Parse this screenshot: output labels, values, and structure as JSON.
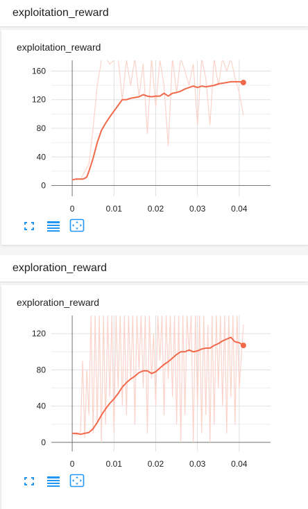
{
  "sections": [
    {
      "header": "exploitation_reward",
      "card_title": "exploitation_reward",
      "icons": [
        "fullscreen-icon",
        "data-table-icon",
        "fit-domain-icon"
      ]
    },
    {
      "header": "exploration_reward",
      "card_title": "exploration_reward",
      "icons": [
        "fullscreen-icon",
        "data-table-icon",
        "fit-domain-icon"
      ]
    }
  ],
  "colors": {
    "smoothed": "#f2684a",
    "raw": "#fbd3ca",
    "grid": "#e0e0e0",
    "axis": "#757575",
    "icon": "#2196f3"
  },
  "chart_data": [
    {
      "type": "line",
      "title": "exploitation_reward",
      "xlabel": "",
      "ylabel": "",
      "xlim": [
        -0.005,
        0.0475
      ],
      "ylim": [
        -15,
        175
      ],
      "x_ticks": [
        "0",
        "0.01",
        "0.02",
        "0.03",
        "0.04"
      ],
      "y_ticks": [
        "0",
        "40",
        "80",
        "120",
        "160"
      ],
      "grid": true,
      "series": [
        {
          "role": "smoothed",
          "x": [
            0,
            0.001,
            0.002,
            0.0025,
            0.003,
            0.0035,
            0.004,
            0.005,
            0.006,
            0.007,
            0.008,
            0.009,
            0.01,
            0.011,
            0.012,
            0.013,
            0.014,
            0.015,
            0.016,
            0.017,
            0.018,
            0.019,
            0.02,
            0.021,
            0.022,
            0.023,
            0.024,
            0.025,
            0.026,
            0.027,
            0.028,
            0.029,
            0.03,
            0.031,
            0.032,
            0.033,
            0.034,
            0.035,
            0.036,
            0.037,
            0.038,
            0.039,
            0.04,
            0.041
          ],
          "y": [
            8,
            9,
            9,
            9,
            10,
            12,
            20,
            38,
            60,
            77,
            87,
            96,
            104,
            112,
            120,
            120,
            122,
            123,
            124,
            127,
            125,
            124,
            125,
            125,
            129,
            125,
            129,
            130,
            132,
            135,
            137,
            139,
            137,
            139,
            138,
            139,
            140,
            142,
            143,
            144,
            145,
            145,
            145,
            144
          ]
        },
        {
          "role": "raw",
          "x": [
            0,
            0.002,
            0.004,
            0.005,
            0.006,
            0.007,
            0.008,
            0.009,
            0.01,
            0.011,
            0.012,
            0.013,
            0.014,
            0.015,
            0.016,
            0.017,
            0.018,
            0.019,
            0.02,
            0.021,
            0.022,
            0.023,
            0.024,
            0.025,
            0.026,
            0.027,
            0.028,
            0.029,
            0.03,
            0.031,
            0.032,
            0.033,
            0.034,
            0.035,
            0.036,
            0.037,
            0.038,
            0.039,
            0.04,
            0.041
          ],
          "y": [
            8,
            9,
            30,
            80,
            140,
            175,
            178,
            170,
            175,
            178,
            120,
            175,
            140,
            178,
            125,
            170,
            72,
            178,
            110,
            175,
            140,
            55,
            178,
            130,
            178,
            160,
            140,
            170,
            85,
            178,
            150,
            85,
            178,
            140,
            178,
            160,
            178,
            150,
            130,
            98
          ]
        }
      ]
    },
    {
      "type": "line",
      "title": "exploration_reward",
      "xlabel": "",
      "ylabel": "",
      "xlim": [
        -0.005,
        0.0475
      ],
      "ylim": [
        -10,
        140
      ],
      "x_ticks": [
        "0",
        "0.01",
        "0.02",
        "0.03",
        "0.04"
      ],
      "y_ticks": [
        "0",
        "40",
        "80",
        "120"
      ],
      "grid": true,
      "series": [
        {
          "role": "smoothed",
          "x": [
            0,
            0.001,
            0.002,
            0.003,
            0.004,
            0.005,
            0.006,
            0.007,
            0.008,
            0.009,
            0.01,
            0.011,
            0.012,
            0.013,
            0.014,
            0.015,
            0.016,
            0.017,
            0.018,
            0.019,
            0.02,
            0.021,
            0.022,
            0.023,
            0.024,
            0.025,
            0.026,
            0.027,
            0.028,
            0.029,
            0.03,
            0.031,
            0.032,
            0.033,
            0.034,
            0.035,
            0.036,
            0.037,
            0.038,
            0.039,
            0.04,
            0.041
          ],
          "y": [
            10,
            10,
            9,
            10,
            11,
            15,
            22,
            30,
            37,
            43,
            48,
            54,
            61,
            66,
            70,
            73,
            77,
            79,
            79,
            76,
            78,
            82,
            86,
            89,
            93,
            97,
            100,
            100,
            102,
            100,
            101,
            103,
            104,
            104,
            107,
            109,
            112,
            114,
            116,
            111,
            110,
            107
          ]
        },
        {
          "role": "raw",
          "x": [
            0,
            0.001,
            0.002,
            0.0025,
            0.003,
            0.0035,
            0.004,
            0.0045,
            0.005,
            0.0055,
            0.006,
            0.0065,
            0.007,
            0.0075,
            0.008,
            0.0085,
            0.009,
            0.0095,
            0.01,
            0.0105,
            0.011,
            0.0115,
            0.012,
            0.0125,
            0.013,
            0.0135,
            0.014,
            0.0145,
            0.015,
            0.0155,
            0.016,
            0.0165,
            0.017,
            0.0175,
            0.018,
            0.0185,
            0.019,
            0.0195,
            0.02,
            0.0205,
            0.021,
            0.0215,
            0.022,
            0.0225,
            0.023,
            0.0235,
            0.024,
            0.0245,
            0.025,
            0.0255,
            0.026,
            0.0265,
            0.027,
            0.0275,
            0.028,
            0.0285,
            0.029,
            0.0295,
            0.03,
            0.0305,
            0.031,
            0.0315,
            0.032,
            0.0325,
            0.033,
            0.0335,
            0.034,
            0.0345,
            0.035,
            0.0355,
            0.036,
            0.0365,
            0.037,
            0.0375,
            0.038,
            0.0385,
            0.039,
            0.0395,
            0.04,
            0.041
          ],
          "y": [
            10,
            8,
            12,
            90,
            5,
            80,
            30,
            140,
            10,
            140,
            20,
            140,
            0,
            140,
            20,
            140,
            50,
            140,
            10,
            140,
            60,
            140,
            40,
            140,
            30,
            140,
            70,
            140,
            20,
            140,
            80,
            140,
            60,
            140,
            10,
            140,
            70,
            120,
            40,
            140,
            90,
            140,
            30,
            140,
            70,
            140,
            50,
            140,
            20,
            140,
            0,
            140,
            30,
            140,
            100,
            140,
            0,
            140,
            40,
            140,
            10,
            140,
            30,
            130,
            0,
            140,
            20,
            140,
            60,
            140,
            40,
            140,
            10,
            140,
            50,
            140,
            20,
            140,
            60,
            130
          ]
        }
      ]
    }
  ]
}
